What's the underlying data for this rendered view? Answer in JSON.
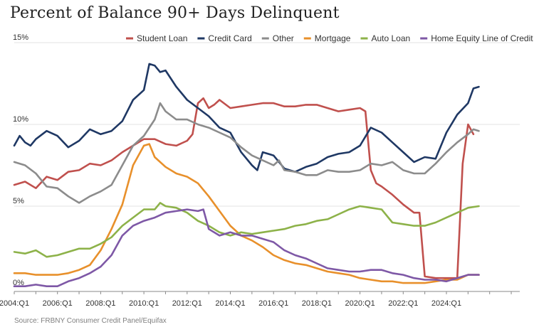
{
  "title": "Percent of Balance 90+ Days Delinquent",
  "source": "Source: FRBNY Consumer Credit Panel/Equifax",
  "colors": {
    "student_loan": "#c0504d",
    "credit_card": "#1f3864",
    "other": "#8c8c8c",
    "mortgage": "#e8902b",
    "auto_loan": "#8db249",
    "heloc": "#7e58a6",
    "grid": "#e3e3e3",
    "axis": "#8a8a8a"
  },
  "chart_data": {
    "type": "line",
    "title": "Percent of Balance 90+ Days Delinquent",
    "xlabel": "",
    "ylabel": "",
    "x_ticks": [
      "2004:Q1",
      "2006:Q1",
      "2008:Q1",
      "2010:Q1",
      "2012:Q1",
      "2014:Q1",
      "2016:Q1",
      "2018:Q1",
      "2020:Q1",
      "2022:Q1",
      "2024:Q1"
    ],
    "y_ticks": [
      "0%",
      "5%",
      "10%",
      "15%"
    ],
    "ylim": [
      0,
      15
    ],
    "x_start_year": 2004,
    "grid": true,
    "legend_position": "top-right",
    "series": [
      {
        "name": "Student Loan",
        "color_key": "student_loan",
        "points": [
          [
            2004.0,
            6.3
          ],
          [
            2004.5,
            6.5
          ],
          [
            2005.0,
            6.1
          ],
          [
            2005.5,
            6.8
          ],
          [
            2006.0,
            6.6
          ],
          [
            2006.5,
            7.1
          ],
          [
            2007.0,
            7.2
          ],
          [
            2007.5,
            7.6
          ],
          [
            2008.0,
            7.5
          ],
          [
            2008.5,
            7.8
          ],
          [
            2009.0,
            8.3
          ],
          [
            2009.5,
            8.7
          ],
          [
            2010.0,
            9.1
          ],
          [
            2010.5,
            9.1
          ],
          [
            2011.0,
            8.8
          ],
          [
            2011.5,
            8.7
          ],
          [
            2012.0,
            9.0
          ],
          [
            2012.25,
            9.4
          ],
          [
            2012.5,
            11.3
          ],
          [
            2012.75,
            11.6
          ],
          [
            2013.0,
            11.0
          ],
          [
            2013.25,
            11.2
          ],
          [
            2013.5,
            11.5
          ],
          [
            2014.0,
            11.0
          ],
          [
            2014.5,
            11.1
          ],
          [
            2015.0,
            11.2
          ],
          [
            2015.5,
            11.3
          ],
          [
            2016.0,
            11.3
          ],
          [
            2016.5,
            11.1
          ],
          [
            2017.0,
            11.1
          ],
          [
            2017.5,
            11.2
          ],
          [
            2018.0,
            11.2
          ],
          [
            2018.5,
            11.0
          ],
          [
            2019.0,
            10.8
          ],
          [
            2019.5,
            10.9
          ],
          [
            2020.0,
            11.0
          ],
          [
            2020.25,
            10.8
          ],
          [
            2020.5,
            7.2
          ],
          [
            2020.75,
            6.4
          ],
          [
            2021.0,
            6.2
          ],
          [
            2021.5,
            5.7
          ],
          [
            2022.0,
            5.1
          ],
          [
            2022.5,
            4.6
          ],
          [
            2022.75,
            4.6
          ],
          [
            2023.0,
            0.7
          ],
          [
            2023.5,
            0.6
          ],
          [
            2024.0,
            0.6
          ],
          [
            2024.5,
            0.6
          ],
          [
            2024.75,
            7.6
          ],
          [
            2025.0,
            10.0
          ],
          [
            2025.25,
            9.4
          ]
        ]
      },
      {
        "name": "Credit Card",
        "color_key": "credit_card",
        "points": [
          [
            2004.0,
            8.7
          ],
          [
            2004.25,
            9.3
          ],
          [
            2004.5,
            8.9
          ],
          [
            2004.75,
            8.7
          ],
          [
            2005.0,
            9.1
          ],
          [
            2005.5,
            9.6
          ],
          [
            2006.0,
            9.3
          ],
          [
            2006.5,
            8.6
          ],
          [
            2007.0,
            9.0
          ],
          [
            2007.5,
            9.7
          ],
          [
            2008.0,
            9.4
          ],
          [
            2008.5,
            9.6
          ],
          [
            2009.0,
            10.2
          ],
          [
            2009.5,
            11.5
          ],
          [
            2010.0,
            12.1
          ],
          [
            2010.25,
            13.7
          ],
          [
            2010.5,
            13.6
          ],
          [
            2010.75,
            13.2
          ],
          [
            2011.0,
            13.3
          ],
          [
            2011.5,
            12.3
          ],
          [
            2012.0,
            11.5
          ],
          [
            2012.5,
            11.0
          ],
          [
            2013.0,
            10.5
          ],
          [
            2013.5,
            9.8
          ],
          [
            2014.0,
            9.5
          ],
          [
            2014.5,
            8.3
          ],
          [
            2015.0,
            7.5
          ],
          [
            2015.25,
            7.2
          ],
          [
            2015.5,
            8.3
          ],
          [
            2016.0,
            8.1
          ],
          [
            2016.5,
            7.3
          ],
          [
            2017.0,
            7.1
          ],
          [
            2017.5,
            7.4
          ],
          [
            2018.0,
            7.6
          ],
          [
            2018.5,
            8.0
          ],
          [
            2019.0,
            8.2
          ],
          [
            2019.5,
            8.3
          ],
          [
            2020.0,
            8.7
          ],
          [
            2020.5,
            9.8
          ],
          [
            2021.0,
            9.5
          ],
          [
            2021.5,
            8.9
          ],
          [
            2022.0,
            8.3
          ],
          [
            2022.5,
            7.7
          ],
          [
            2023.0,
            8.0
          ],
          [
            2023.5,
            7.9
          ],
          [
            2024.0,
            9.5
          ],
          [
            2024.5,
            10.6
          ],
          [
            2025.0,
            11.3
          ],
          [
            2025.25,
            12.2
          ],
          [
            2025.5,
            12.3
          ]
        ]
      },
      {
        "name": "Other",
        "color_key": "other",
        "points": [
          [
            2004.0,
            7.7
          ],
          [
            2004.5,
            7.5
          ],
          [
            2005.0,
            7.0
          ],
          [
            2005.5,
            6.2
          ],
          [
            2006.0,
            6.1
          ],
          [
            2006.5,
            5.6
          ],
          [
            2007.0,
            5.2
          ],
          [
            2007.5,
            5.6
          ],
          [
            2008.0,
            5.9
          ],
          [
            2008.5,
            6.3
          ],
          [
            2009.0,
            7.5
          ],
          [
            2009.5,
            8.7
          ],
          [
            2010.0,
            9.3
          ],
          [
            2010.5,
            10.3
          ],
          [
            2010.75,
            11.3
          ],
          [
            2011.0,
            10.8
          ],
          [
            2011.5,
            10.3
          ],
          [
            2012.0,
            10.3
          ],
          [
            2012.5,
            10.0
          ],
          [
            2013.0,
            9.8
          ],
          [
            2013.5,
            9.5
          ],
          [
            2014.0,
            9.2
          ],
          [
            2014.5,
            8.6
          ],
          [
            2015.0,
            8.1
          ],
          [
            2015.5,
            7.8
          ],
          [
            2016.0,
            7.5
          ],
          [
            2016.25,
            7.8
          ],
          [
            2016.5,
            7.2
          ],
          [
            2017.0,
            7.1
          ],
          [
            2017.5,
            6.9
          ],
          [
            2018.0,
            6.9
          ],
          [
            2018.5,
            7.2
          ],
          [
            2019.0,
            7.1
          ],
          [
            2019.5,
            7.1
          ],
          [
            2020.0,
            7.2
          ],
          [
            2020.5,
            7.6
          ],
          [
            2021.0,
            7.5
          ],
          [
            2021.5,
            7.7
          ],
          [
            2022.0,
            7.2
          ],
          [
            2022.5,
            7.0
          ],
          [
            2023.0,
            7.0
          ],
          [
            2023.5,
            7.6
          ],
          [
            2024.0,
            8.3
          ],
          [
            2024.5,
            8.9
          ],
          [
            2025.0,
            9.4
          ],
          [
            2025.25,
            9.7
          ],
          [
            2025.5,
            9.6
          ]
        ]
      },
      {
        "name": "Mortgage",
        "color_key": "mortgage",
        "points": [
          [
            2004.0,
            0.9
          ],
          [
            2004.5,
            0.9
          ],
          [
            2005.0,
            0.8
          ],
          [
            2005.5,
            0.8
          ],
          [
            2006.0,
            0.8
          ],
          [
            2006.5,
            0.9
          ],
          [
            2007.0,
            1.1
          ],
          [
            2007.5,
            1.4
          ],
          [
            2008.0,
            2.3
          ],
          [
            2008.5,
            3.6
          ],
          [
            2009.0,
            5.1
          ],
          [
            2009.5,
            7.5
          ],
          [
            2010.0,
            8.7
          ],
          [
            2010.25,
            8.8
          ],
          [
            2010.5,
            8.0
          ],
          [
            2011.0,
            7.4
          ],
          [
            2011.5,
            7.0
          ],
          [
            2012.0,
            6.8
          ],
          [
            2012.5,
            6.4
          ],
          [
            2013.0,
            5.6
          ],
          [
            2013.5,
            4.7
          ],
          [
            2014.0,
            3.8
          ],
          [
            2014.5,
            3.2
          ],
          [
            2015.0,
            2.9
          ],
          [
            2015.5,
            2.5
          ],
          [
            2016.0,
            2.0
          ],
          [
            2016.5,
            1.7
          ],
          [
            2017.0,
            1.5
          ],
          [
            2017.5,
            1.4
          ],
          [
            2018.0,
            1.2
          ],
          [
            2018.5,
            1.0
          ],
          [
            2019.0,
            0.9
          ],
          [
            2019.5,
            0.8
          ],
          [
            2020.0,
            0.6
          ],
          [
            2020.5,
            0.5
          ],
          [
            2021.0,
            0.4
          ],
          [
            2021.5,
            0.4
          ],
          [
            2022.0,
            0.3
          ],
          [
            2022.5,
            0.3
          ],
          [
            2023.0,
            0.3
          ],
          [
            2023.5,
            0.4
          ],
          [
            2024.0,
            0.5
          ],
          [
            2024.5,
            0.5
          ],
          [
            2025.0,
            0.8
          ],
          [
            2025.5,
            0.8
          ]
        ]
      },
      {
        "name": "Auto Loan",
        "color_key": "auto_loan",
        "points": [
          [
            2004.0,
            2.2
          ],
          [
            2004.5,
            2.1
          ],
          [
            2005.0,
            2.3
          ],
          [
            2005.5,
            1.9
          ],
          [
            2006.0,
            2.0
          ],
          [
            2006.5,
            2.2
          ],
          [
            2007.0,
            2.4
          ],
          [
            2007.5,
            2.4
          ],
          [
            2008.0,
            2.7
          ],
          [
            2008.5,
            3.1
          ],
          [
            2009.0,
            3.8
          ],
          [
            2009.5,
            4.3
          ],
          [
            2010.0,
            4.8
          ],
          [
            2010.5,
            4.8
          ],
          [
            2010.75,
            5.2
          ],
          [
            2011.0,
            5.0
          ],
          [
            2011.5,
            4.9
          ],
          [
            2012.0,
            4.6
          ],
          [
            2012.5,
            4.1
          ],
          [
            2013.0,
            3.8
          ],
          [
            2013.5,
            3.4
          ],
          [
            2014.0,
            3.2
          ],
          [
            2014.5,
            3.4
          ],
          [
            2015.0,
            3.3
          ],
          [
            2015.5,
            3.4
          ],
          [
            2016.0,
            3.5
          ],
          [
            2016.5,
            3.6
          ],
          [
            2017.0,
            3.8
          ],
          [
            2017.5,
            3.9
          ],
          [
            2018.0,
            4.1
          ],
          [
            2018.5,
            4.2
          ],
          [
            2019.0,
            4.5
          ],
          [
            2019.5,
            4.8
          ],
          [
            2020.0,
            5.0
          ],
          [
            2020.5,
            4.9
          ],
          [
            2021.0,
            4.8
          ],
          [
            2021.5,
            4.0
          ],
          [
            2022.0,
            3.9
          ],
          [
            2022.5,
            3.8
          ],
          [
            2023.0,
            3.8
          ],
          [
            2023.5,
            4.0
          ],
          [
            2024.0,
            4.3
          ],
          [
            2024.5,
            4.6
          ],
          [
            2025.0,
            4.9
          ],
          [
            2025.5,
            5.0
          ]
        ]
      },
      {
        "name": "Home Equity Line of Credit",
        "color_key": "heloc",
        "points": [
          [
            2004.0,
            0.1
          ],
          [
            2004.5,
            0.1
          ],
          [
            2005.0,
            0.2
          ],
          [
            2005.5,
            0.1
          ],
          [
            2006.0,
            0.1
          ],
          [
            2006.5,
            0.4
          ],
          [
            2007.0,
            0.6
          ],
          [
            2007.5,
            0.9
          ],
          [
            2008.0,
            1.3
          ],
          [
            2008.5,
            2.0
          ],
          [
            2009.0,
            3.2
          ],
          [
            2009.5,
            3.8
          ],
          [
            2010.0,
            4.1
          ],
          [
            2010.5,
            4.3
          ],
          [
            2011.0,
            4.6
          ],
          [
            2011.5,
            4.7
          ],
          [
            2012.0,
            4.8
          ],
          [
            2012.5,
            4.7
          ],
          [
            2012.75,
            4.8
          ],
          [
            2013.0,
            3.6
          ],
          [
            2013.5,
            3.2
          ],
          [
            2014.0,
            3.4
          ],
          [
            2014.5,
            3.2
          ],
          [
            2015.0,
            3.2
          ],
          [
            2015.5,
            3.0
          ],
          [
            2016.0,
            2.8
          ],
          [
            2016.5,
            2.3
          ],
          [
            2017.0,
            2.0
          ],
          [
            2017.5,
            1.8
          ],
          [
            2018.0,
            1.5
          ],
          [
            2018.5,
            1.2
          ],
          [
            2019.0,
            1.1
          ],
          [
            2019.5,
            1.0
          ],
          [
            2020.0,
            1.0
          ],
          [
            2020.5,
            1.1
          ],
          [
            2021.0,
            1.1
          ],
          [
            2021.5,
            0.9
          ],
          [
            2022.0,
            0.8
          ],
          [
            2022.5,
            0.6
          ],
          [
            2023.0,
            0.5
          ],
          [
            2023.5,
            0.5
          ],
          [
            2024.0,
            0.4
          ],
          [
            2024.5,
            0.6
          ],
          [
            2025.0,
            0.8
          ],
          [
            2025.5,
            0.8
          ]
        ]
      }
    ]
  }
}
